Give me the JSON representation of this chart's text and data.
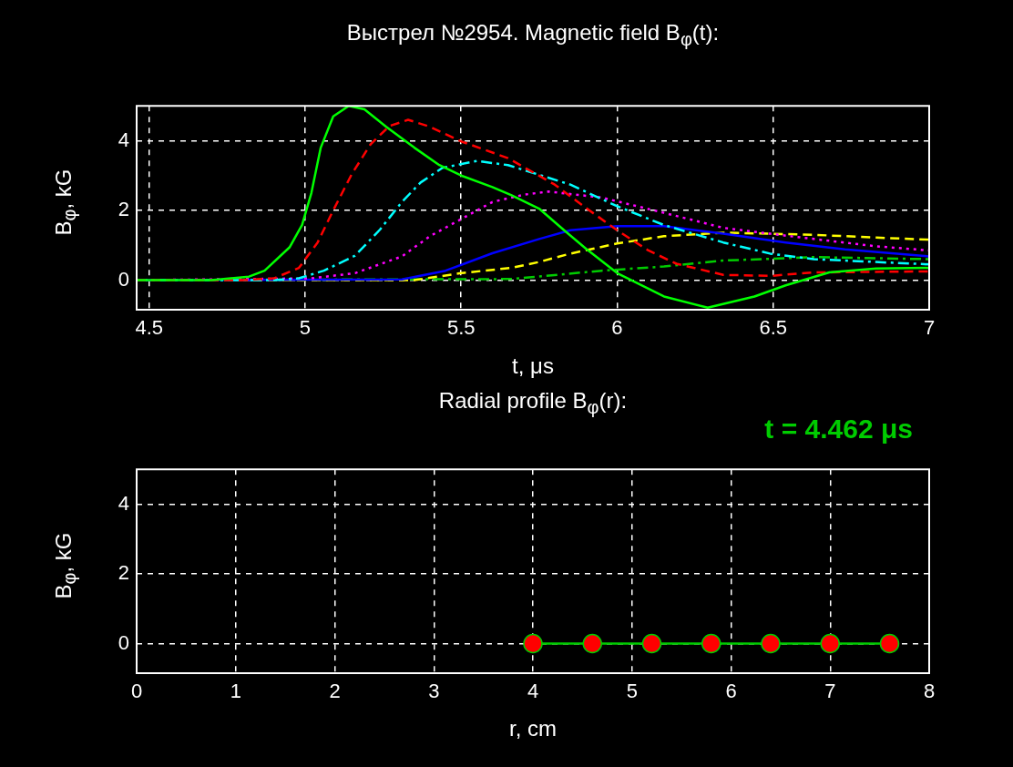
{
  "chart_data": [
    {
      "type": "line",
      "title": "Выстрел №2954. Magnetic field B$_{φ}$(t):",
      "xlabel": "t, μs",
      "ylabel": "B$_{φ}$, kG",
      "xlim": [
        4.46,
        7
      ],
      "xticks": [
        4.5,
        5,
        5.5,
        6,
        6.5,
        7
      ],
      "ylim": [
        -0.85,
        5
      ],
      "yticks": [
        0,
        2,
        4
      ],
      "grid": true,
      "legend": false,
      "marker": "none",
      "series": [
        {
          "color": "#00ff00",
          "line_style": "solid",
          "x": [
            4.46,
            4.7,
            4.82,
            4.87,
            4.95,
            4.99,
            5.02,
            5.05,
            5.09,
            5.14,
            5.19,
            5.26,
            5.35,
            5.43,
            5.5,
            5.6,
            5.66,
            5.75,
            5.83,
            5.9,
            6.0,
            6.15,
            6.29,
            6.44,
            6.54,
            6.68,
            6.83,
            7
          ],
          "values": [
            0,
            0,
            0.1,
            0.27,
            0.94,
            1.58,
            2.5,
            3.8,
            4.7,
            5.0,
            4.9,
            4.4,
            3.8,
            3.3,
            3.0,
            2.67,
            2.44,
            2.05,
            1.43,
            0.9,
            0.2,
            -0.47,
            -0.79,
            -0.47,
            -0.15,
            0.22,
            0.33,
            0.35
          ]
        },
        {
          "color": "#ff0000",
          "line_style": "dashed",
          "x": [
            4.46,
            4.8,
            4.9,
            4.98,
            5.04,
            5.09,
            5.15,
            5.21,
            5.27,
            5.33,
            5.4,
            5.5,
            5.65,
            5.8,
            5.9,
            6.0,
            6.1,
            6.19,
            6.34,
            6.49,
            6.63,
            7
          ],
          "values": [
            0,
            0,
            0.05,
            0.35,
            1.08,
            2.0,
            3.05,
            3.9,
            4.42,
            4.6,
            4.4,
            3.98,
            3.5,
            2.74,
            2.07,
            1.43,
            0.85,
            0.47,
            0.15,
            0.12,
            0.22,
            0.25
          ]
        },
        {
          "color": "#00ffff",
          "line_style": "dashdot",
          "x": [
            4.46,
            4.9,
            4.98,
            5.06,
            5.16,
            5.24,
            5.31,
            5.37,
            5.44,
            5.55,
            5.65,
            5.85,
            6.0,
            6.15,
            6.34,
            6.49,
            6.63,
            7
          ],
          "values": [
            0,
            0,
            0.05,
            0.27,
            0.7,
            1.45,
            2.24,
            2.8,
            3.22,
            3.42,
            3.3,
            2.74,
            2.12,
            1.58,
            1.08,
            0.76,
            0.6,
            0.45
          ]
        },
        {
          "color": "#ff00ff",
          "line_style": "dotted",
          "x": [
            4.46,
            5.02,
            5.16,
            5.31,
            5.4,
            5.5,
            5.6,
            5.7,
            5.78,
            5.95,
            6.15,
            6.34,
            6.49,
            6.63,
            6.83,
            7
          ],
          "values": [
            0,
            0.05,
            0.2,
            0.68,
            1.26,
            1.75,
            2.24,
            2.45,
            2.54,
            2.37,
            1.93,
            1.5,
            1.33,
            1.18,
            0.97,
            0.85
          ]
        },
        {
          "color": "#0000ff",
          "line_style": "solid",
          "x": [
            4.46,
            5.31,
            5.45,
            5.6,
            5.75,
            5.85,
            6.0,
            6.15,
            6.34,
            6.54,
            6.73,
            7
          ],
          "values": [
            0,
            0.02,
            0.27,
            0.77,
            1.18,
            1.43,
            1.55,
            1.55,
            1.33,
            1.08,
            0.88,
            0.68
          ]
        },
        {
          "color": "#ffff00",
          "line_style": "dashed",
          "x": [
            4.46,
            5.35,
            5.5,
            5.66,
            5.75,
            5.85,
            6.0,
            6.15,
            6.34,
            6.63,
            6.83,
            7
          ],
          "values": [
            0,
            0,
            0.2,
            0.35,
            0.52,
            0.76,
            1.05,
            1.26,
            1.36,
            1.3,
            1.22,
            1.16
          ]
        },
        {
          "color": "#00cc00",
          "line_style": "dashdot",
          "x": [
            4.46,
            5.66,
            5.95,
            6.15,
            6.34,
            6.63,
            7
          ],
          "values": [
            0,
            0.03,
            0.27,
            0.39,
            0.56,
            0.66,
            0.6
          ]
        }
      ]
    },
    {
      "type": "line",
      "title": "Radial profile B$_{φ}$(r):",
      "xlabel": "r, cm",
      "ylabel": "B$_{φ}$, kG",
      "annotations": [
        "t = 4.462 μs"
      ],
      "xlim": [
        0,
        8
      ],
      "xticks": [
        0,
        1,
        2,
        3,
        4,
        5,
        6,
        7,
        8
      ],
      "ylim": [
        -0.85,
        5
      ],
      "yticks": [
        0,
        2,
        4
      ],
      "grid": true,
      "legend": false,
      "marker": "circle",
      "series": [
        {
          "color": "#00cc00",
          "colors": [
            "#ff0000",
            "#ff0000",
            "#ff0000",
            "#ff0000",
            "#ff0000",
            "#ff0000",
            "#ff0000"
          ],
          "line_style": "solid",
          "x": [
            4,
            4.6,
            5.2,
            5.8,
            6.4,
            7,
            7.6
          ],
          "values": [
            0,
            0,
            0,
            0,
            0,
            0,
            0
          ]
        }
      ]
    }
  ]
}
